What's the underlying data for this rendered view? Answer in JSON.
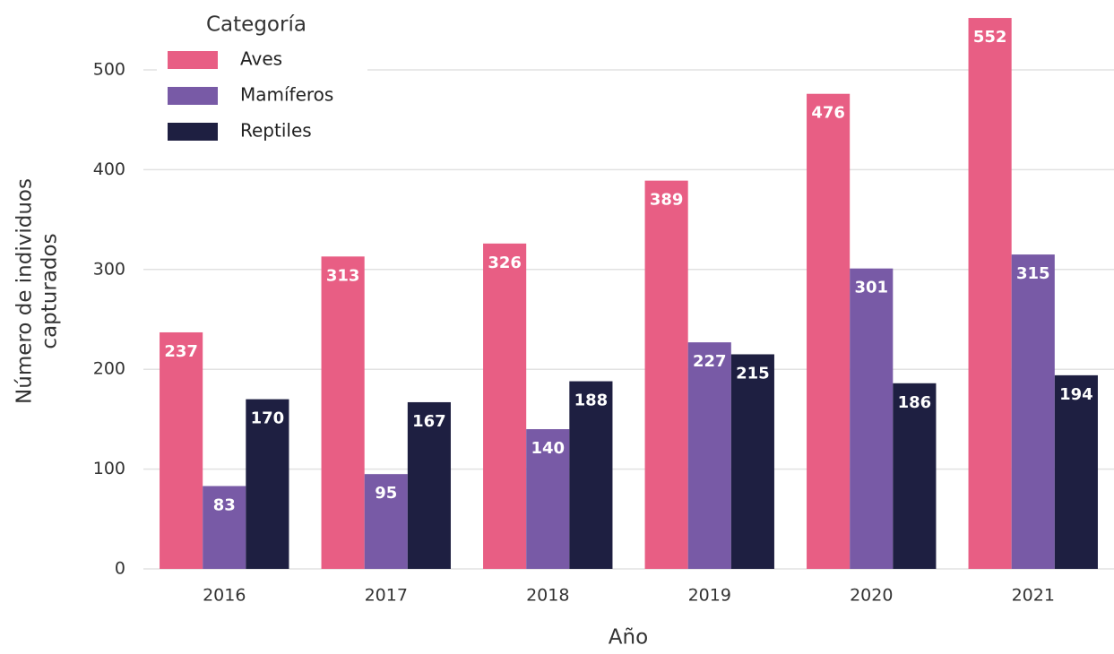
{
  "chart_data": {
    "type": "grouped_bar",
    "x_label": "Año",
    "y_label": [
      "Número de individuos",
      "capturados"
    ],
    "legend_title": "Categoría",
    "legend": "top-left",
    "grid": true,
    "categories": [
      "2016",
      "2017",
      "2018",
      "2019",
      "2020",
      "2021"
    ],
    "series": [
      {
        "name": "Aves",
        "color": "#e85e84",
        "values": [
          237,
          313,
          326,
          389,
          476,
          552
        ]
      },
      {
        "name": "Mamíferos",
        "color": "#785aa6",
        "values": [
          83,
          95,
          140,
          227,
          301,
          315
        ]
      },
      {
        "name": "Reptiles",
        "color": "#1e1f41",
        "values": [
          170,
          167,
          188,
          215,
          186,
          194
        ]
      }
    ],
    "ylim": [
      0,
      570
    ],
    "yticks": [
      0,
      100,
      200,
      300,
      400,
      500
    ]
  }
}
